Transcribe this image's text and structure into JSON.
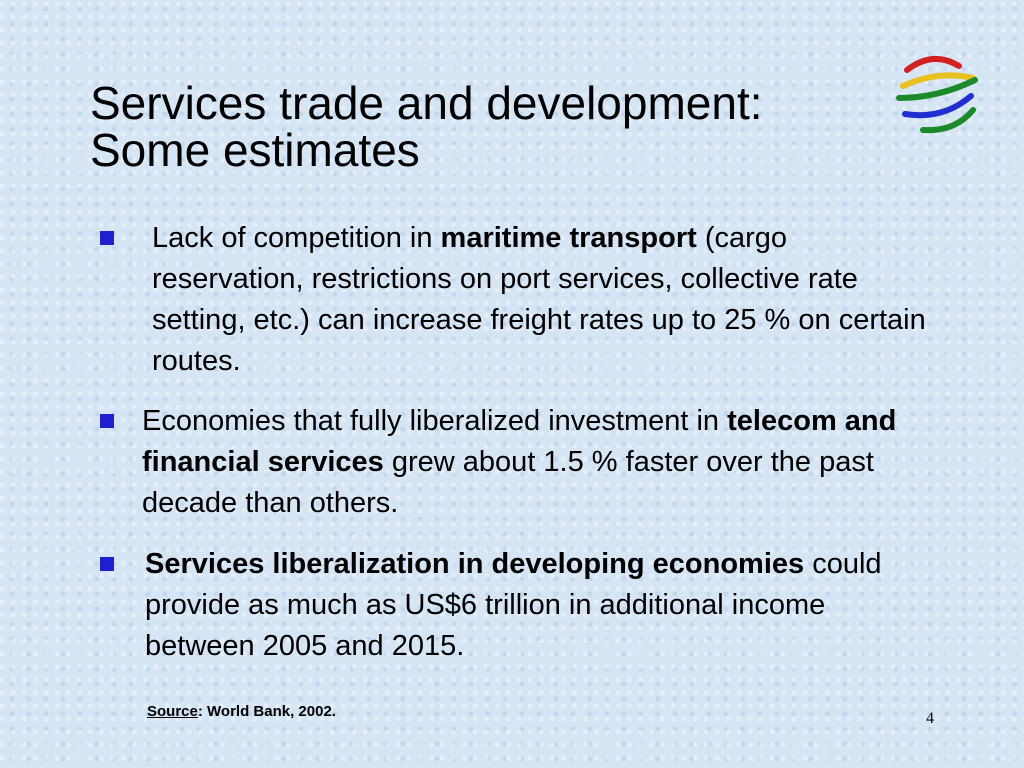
{
  "title": [
    "Services trade and development:",
    "Some estimates"
  ],
  "bullets": [
    {
      "runs": [
        {
          "text": "Lack of competition in ",
          "bold": false
        },
        {
          "text": "maritime transport",
          "bold": true
        },
        {
          "text": " (cargo reservation, restrictions on port services, collective rate setting, etc.) can increase freight rates up to 25 % on certain routes.",
          "bold": false
        }
      ]
    },
    {
      "runs": [
        {
          "text": "Economies that fully liberalized investment in ",
          "bold": false
        },
        {
          "text": "telecom and financial services",
          "bold": true
        },
        {
          "text": " grew about 1.5 % faster over the past decade than others.",
          "bold": false
        }
      ]
    },
    {
      "runs": [
        {
          "text": "Services liberalization in developing economies",
          "bold": true
        },
        {
          "text": " could provide as much as US$6 trillion in additional income between 2005 and 2015.",
          "bold": false
        }
      ]
    }
  ],
  "source": {
    "label": "Source",
    "text": ":  World Bank, 2002."
  },
  "page_number": "4"
}
